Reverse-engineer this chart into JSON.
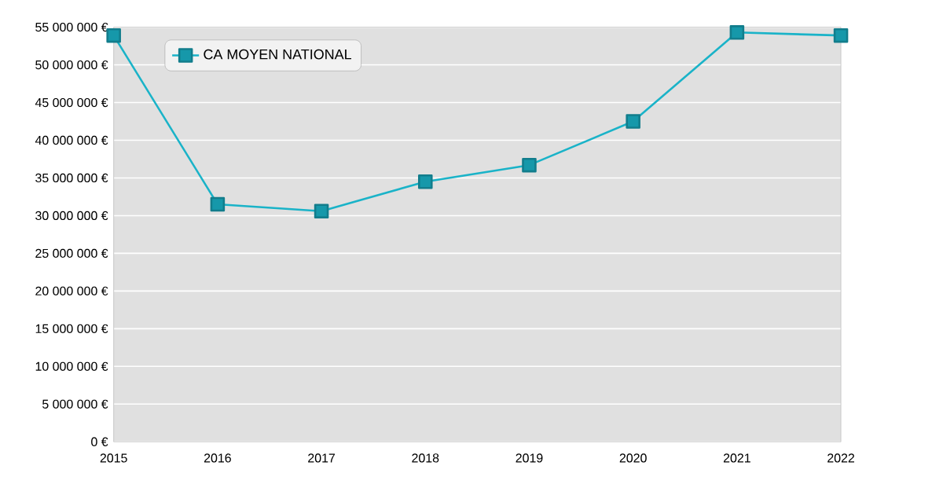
{
  "chart_data": {
    "type": "line",
    "x": [
      2015,
      2016,
      2017,
      2018,
      2019,
      2020,
      2021,
      2022
    ],
    "series": [
      {
        "name": "CA MOYEN NATIONAL",
        "color": "#1ab3c8",
        "values": [
          53900000,
          31500000,
          30600000,
          34500000,
          36700000,
          42500000,
          54300000,
          53900000
        ]
      }
    ],
    "xlim": [
      2015,
      2022
    ],
    "xticks": [
      2015,
      2016,
      2017,
      2018,
      2019,
      2020,
      2021,
      2022
    ],
    "ylim": [
      0,
      55000000
    ],
    "yticks": [
      {
        "value": 0,
        "label": "0 €"
      },
      {
        "value": 5000000,
        "label": "5 000 000 €"
      },
      {
        "value": 10000000,
        "label": "10 000 000 €"
      },
      {
        "value": 15000000,
        "label": "15 000 000 €"
      },
      {
        "value": 20000000,
        "label": "20 000 000 €"
      },
      {
        "value": 25000000,
        "label": "25 000 000 €"
      },
      {
        "value": 30000000,
        "label": "30 000 000 €"
      },
      {
        "value": 35000000,
        "label": "35 000 000 €"
      },
      {
        "value": 40000000,
        "label": "40 000 000 €"
      },
      {
        "value": 45000000,
        "label": "45 000 000 €"
      },
      {
        "value": 50000000,
        "label": "50 000 000 €"
      },
      {
        "value": 55000000,
        "label": "55 000 000 €"
      }
    ],
    "grid": "y",
    "legend": "top left",
    "marker": "square",
    "line_style": "solid"
  }
}
